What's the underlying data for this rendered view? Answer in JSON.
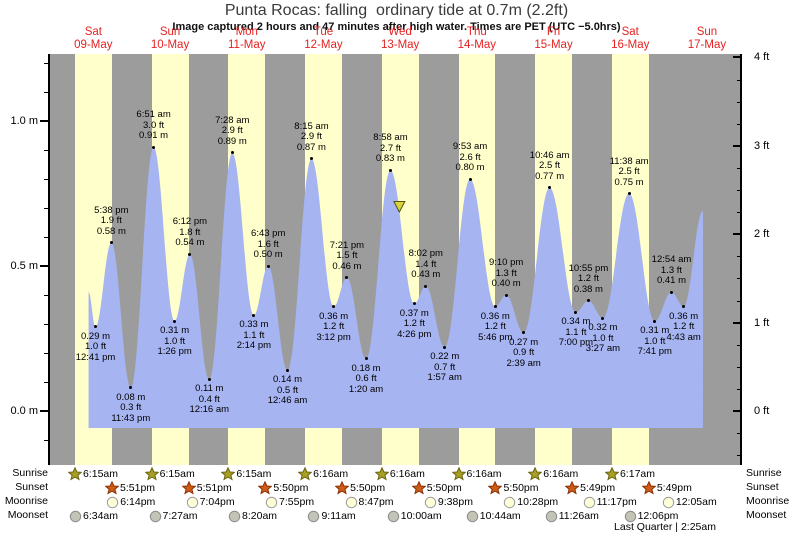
{
  "title": "Punta Rocas: falling  ordinary tide at 0.7m (2.2ft)",
  "subtitle": "Image captured 2 hours and 47 minutes after high water. Times are PET (UTC −5.0hrs)",
  "colors": {
    "night_gray": "#9c9c9c",
    "daylight_yellow": "#ffffcc",
    "tide_blue": "#a6b4f2",
    "date_red": "#e62222",
    "marker_yellow": "#d8d23c",
    "marker_border": "#55550f",
    "sunrise_star": "#a89e28",
    "sunrise_star_border": "#6b640f",
    "sunset_star": "#cf5c14",
    "sunset_star_border": "#8a2f05",
    "moonrise_moon": "#ffffd8",
    "moonrise_moon_border": "#9a9a9a",
    "moonset_moon": "#c4c4b6",
    "moonset_moon_border": "#8a8a8a"
  },
  "chart_data": {
    "type": "area",
    "title": "Punta Rocas tide curve",
    "y_axis_m": {
      "labels": [
        "1.0 m",
        "0.5 m",
        "0.0 m"
      ],
      "values": [
        1.0,
        0.5,
        0.0
      ]
    },
    "y_axis_ft": {
      "labels": [
        "4 ft",
        "3 ft",
        "2 ft",
        "1 ft",
        "0 ft"
      ],
      "values": [
        4,
        3,
        2,
        1,
        0
      ]
    },
    "days": [
      {
        "name": "Sat",
        "date": "09-May"
      },
      {
        "name": "Sun",
        "date": "10-May"
      },
      {
        "name": "Mon",
        "date": "11-May"
      },
      {
        "name": "Tue",
        "date": "12-May"
      },
      {
        "name": "Wed",
        "date": "13-May"
      },
      {
        "name": "Thu",
        "date": "14-May"
      },
      {
        "name": "Fri",
        "date": "15-May"
      },
      {
        "name": "Sat",
        "date": "16-May"
      },
      {
        "name": "Sun",
        "date": "17-May"
      }
    ],
    "tide_events": [
      {
        "day": 0,
        "time": "12:41 pm",
        "height_m": "0.29",
        "height_ft": "1.0",
        "type": "low"
      },
      {
        "day": 0,
        "time": "5:38 pm",
        "height_m": "0.58",
        "height_ft": "1.9",
        "type": "high"
      },
      {
        "day": 0,
        "time": "11:43 pm",
        "height_m": "0.08",
        "height_ft": "0.3",
        "type": "low"
      },
      {
        "day": 1,
        "time": "6:51 am",
        "height_m": "0.91",
        "height_ft": "3.0",
        "type": "high"
      },
      {
        "day": 1,
        "time": "1:26 pm",
        "height_m": "0.31",
        "height_ft": "1.0",
        "type": "low"
      },
      {
        "day": 1,
        "time": "6:12 pm",
        "height_m": "0.54",
        "height_ft": "1.8",
        "type": "high"
      },
      {
        "day": 2,
        "time": "12:16 am",
        "height_m": "0.11",
        "height_ft": "0.4",
        "type": "low"
      },
      {
        "day": 2,
        "time": "7:28 am",
        "height_m": "0.89",
        "height_ft": "2.9",
        "type": "high"
      },
      {
        "day": 2,
        "time": "2:14 pm",
        "height_m": "0.33",
        "height_ft": "1.1",
        "type": "low"
      },
      {
        "day": 2,
        "time": "6:43 pm",
        "height_m": "0.50",
        "height_ft": "1.6",
        "type": "high"
      },
      {
        "day": 3,
        "time": "12:46 am",
        "height_m": "0.14",
        "height_ft": "0.5",
        "type": "low"
      },
      {
        "day": 3,
        "time": "8:15 am",
        "height_m": "0.87",
        "height_ft": "2.9",
        "type": "high"
      },
      {
        "day": 3,
        "time": "3:12 pm",
        "height_m": "0.36",
        "height_ft": "1.2",
        "type": "low"
      },
      {
        "day": 3,
        "time": "7:21 pm",
        "height_m": "0.46",
        "height_ft": "1.5",
        "type": "high"
      },
      {
        "day": 4,
        "time": "1:20 am",
        "height_m": "0.18",
        "height_ft": "0.6",
        "type": "low"
      },
      {
        "day": 4,
        "time": "8:58 am",
        "height_m": "0.83",
        "height_ft": "2.7",
        "type": "high"
      },
      {
        "day": 4,
        "time": "4:26 pm",
        "height_m": "0.37",
        "height_ft": "1.2",
        "type": "low"
      },
      {
        "day": 4,
        "time": "8:02 pm",
        "height_m": "0.43",
        "height_ft": "1.4",
        "type": "high"
      },
      {
        "day": 5,
        "time": "1:57 am",
        "height_m": "0.22",
        "height_ft": "0.7",
        "type": "low"
      },
      {
        "day": 5,
        "time": "9:53 am",
        "height_m": "0.80",
        "height_ft": "2.6",
        "type": "high"
      },
      {
        "day": 5,
        "time": "5:46 pm",
        "height_m": "0.36",
        "height_ft": "1.2",
        "type": "low"
      },
      {
        "day": 5,
        "time": "9:10 pm",
        "height_m": "0.40",
        "height_ft": "1.3",
        "type": "high"
      },
      {
        "day": 6,
        "time": "2:39 am",
        "height_m": "0.27",
        "height_ft": "0.9",
        "type": "low"
      },
      {
        "day": 6,
        "time": "10:46 am",
        "height_m": "0.77",
        "height_ft": "2.5",
        "type": "high"
      },
      {
        "day": 6,
        "time": "7:00 pm",
        "height_m": "0.34",
        "height_ft": "1.1",
        "type": "low"
      },
      {
        "day": 6,
        "time": "10:55 pm",
        "height_m": "0.38",
        "height_ft": "1.2",
        "type": "high"
      },
      {
        "day": 7,
        "time": "3:27 am",
        "height_m": "0.32",
        "height_ft": "1.0",
        "type": "low"
      },
      {
        "day": 7,
        "time": "11:38 am",
        "height_m": "0.75",
        "height_ft": "2.5",
        "type": "high"
      },
      {
        "day": 7,
        "time": "7:41 pm",
        "height_m": "0.31",
        "height_ft": "1.0",
        "type": "low"
      },
      {
        "day": 8,
        "time": "12:54 am",
        "height_m": "0.41",
        "height_ft": "1.3",
        "type": "high"
      },
      {
        "day": 8,
        "time": "4:43 am",
        "height_m": "0.36",
        "height_ft": "1.2",
        "type": "low"
      }
    ],
    "series_start": {
      "day": 0,
      "time": "10:30 am",
      "height_m": 0.41
    },
    "series_end": {
      "day": 8,
      "time": "10:45 am",
      "height_m": 0.69
    },
    "current_marker": {
      "day": 4,
      "time": "11:45 am",
      "height_m": 0.7
    },
    "sun_moon": {
      "row_labels": [
        "Sunrise",
        "Sunset",
        "Moonrise",
        "Moonset"
      ],
      "sunrise": [
        "6:15am",
        "6:15am",
        "6:15am",
        "6:16am",
        "6:16am",
        "6:16am",
        "6:16am",
        "6:17am"
      ],
      "sunset": [
        "5:51pm",
        "5:51pm",
        "5:50pm",
        "5:50pm",
        "5:50pm",
        "5:50pm",
        "5:49pm",
        "5:49pm"
      ],
      "moonrise": [
        "6:14pm",
        "7:04pm",
        "7:55pm",
        "8:47pm",
        "9:38pm",
        "10:28pm",
        "11:17pm",
        "12:05am"
      ],
      "moonset": [
        "6:34am",
        "7:27am",
        "8:20am",
        "9:11am",
        "10:00am",
        "10:44am",
        "11:26am",
        "12:06pm"
      ]
    },
    "moon_phase_note": "Last Quarter | 2:25am"
  }
}
